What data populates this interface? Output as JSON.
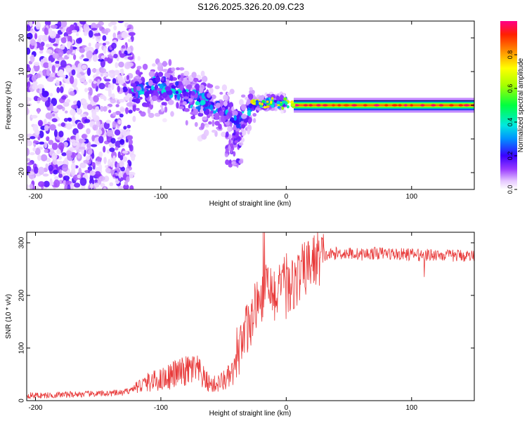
{
  "title": "S126.2025.326.20.09.C23",
  "chart_data": [
    {
      "type": "heatmap",
      "xlabel": "Height of straight line (km)",
      "ylabel": "Frequency (Hz)",
      "xlim": [
        -207,
        150
      ],
      "ylim": [
        -25,
        25
      ],
      "xticks": [
        -200,
        -100,
        0,
        100
      ],
      "yticks": [
        -20,
        -10,
        0,
        10,
        20
      ],
      "colorbar": {
        "label": "Normalized spectral amplitude",
        "range": [
          0,
          1
        ],
        "ticks": [
          0.0,
          0.2,
          0.4,
          0.6,
          0.8
        ]
      },
      "ridge": [
        {
          "x": -120,
          "y": 4
        },
        {
          "x": -105,
          "y": 6
        },
        {
          "x": -90,
          "y": 5
        },
        {
          "x": -75,
          "y": 2
        },
        {
          "x": -60,
          "y": 0
        },
        {
          "x": -45,
          "y": -3
        },
        {
          "x": -38,
          "y": -5
        },
        {
          "x": -32,
          "y": -2
        },
        {
          "x": -25,
          "y": 0
        },
        {
          "x": -15,
          "y": 1
        },
        {
          "x": -5,
          "y": 1
        },
        {
          "x": 0,
          "y": 1
        },
        {
          "x": 50,
          "y": 0
        },
        {
          "x": 100,
          "y": 0
        },
        {
          "x": 150,
          "y": 0
        }
      ]
    },
    {
      "type": "line",
      "xlabel": "Height of straight line (km)",
      "ylabel": "SNR (10 * v/v)",
      "xlim": [
        -207,
        150
      ],
      "ylim": [
        0,
        320
      ],
      "xticks": [
        -200,
        -100,
        0,
        100
      ],
      "yticks": [
        0,
        100,
        200,
        300
      ],
      "color": "#e83a3a",
      "series": [
        {
          "name": "SNR",
          "x": [
            -207,
            -190,
            -170,
            -150,
            -130,
            -120,
            -110,
            -100,
            -90,
            -80,
            -75,
            -70,
            -65,
            -60,
            -55,
            -50,
            -45,
            -40,
            -35,
            -30,
            -25,
            -20,
            -15,
            -10,
            -5,
            0,
            5,
            10,
            15,
            20,
            25,
            30,
            40,
            50,
            60,
            70,
            80,
            90,
            100,
            110,
            120,
            130,
            140,
            150
          ],
          "values": [
            10,
            10,
            12,
            13,
            15,
            25,
            35,
            40,
            50,
            55,
            60,
            55,
            40,
            30,
            32,
            38,
            45,
            60,
            100,
            150,
            170,
            190,
            210,
            205,
            205,
            210,
            220,
            235,
            250,
            262,
            270,
            275,
            280,
            280,
            278,
            280,
            280,
            278,
            278,
            276,
            278,
            275,
            276,
            275
          ]
        }
      ]
    }
  ]
}
